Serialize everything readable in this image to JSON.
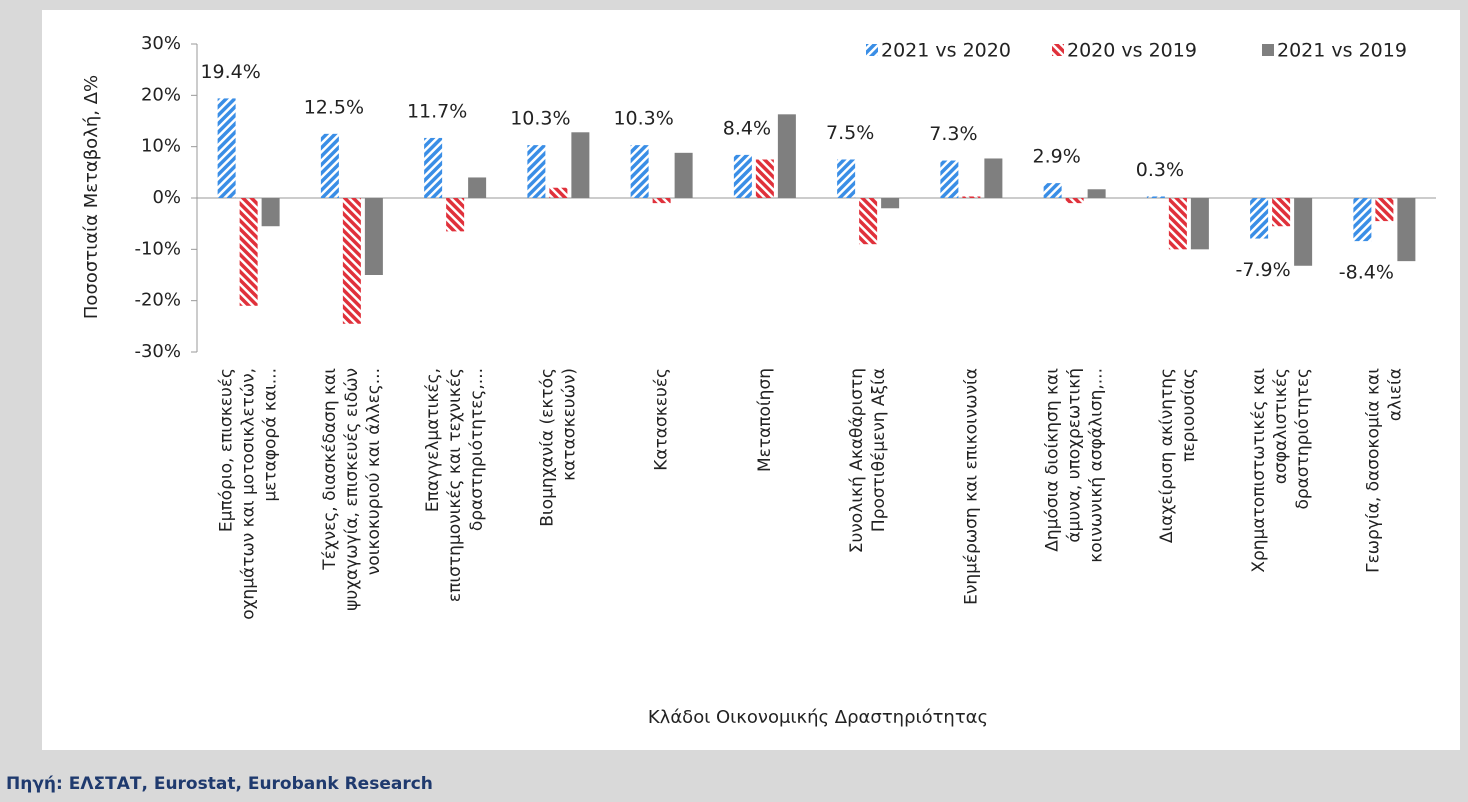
{
  "chart_data": {
    "type": "bar",
    "y_label": "Ποσοστιαία Μεταβολή, Δ%",
    "x_label": "Κλάδοι Οικονομικής Δραστηριότητας",
    "source": "Πηγή: ΕΛΣΤΑΤ, Eurostat, Eurobank Research",
    "categories": [
      "Εμπόριο, επισκευές οχημάτων και μοτοσικλετών, μεταφορά και...",
      "Τέχνες, διασκέδαση και ψυχαγωγία, επισκευές ειδών νοικοκυριού και άλλες...",
      "Επαγγελματικές, επιστημονικές και τεχνικές δραστηριότητες,...",
      "Βιομηχανία (εκτός κατασκευών)",
      "Κατασκευές",
      "Μεταποίηση",
      "Συνολική Ακαθάριστη Προστιθέμενη Αξία",
      "Ενημέρωση και επικοινωνία",
      "Δημόσια διοίκηση και άμυνα, υποχρεωτική κοινωνική ασφάλιση,...",
      "Διαχείριση ακίνητης περιουσίας",
      "Χρηματοπιστωτικές και ασφαλιστικές δραστηριότητες",
      "Γεωργία, δασοκομία και αλιεία"
    ],
    "series": [
      {
        "name": "2021 vs 2020",
        "color": "#3a8ee6",
        "hatched": true,
        "values": [
          19.4,
          12.5,
          11.7,
          10.3,
          10.3,
          8.4,
          7.5,
          7.3,
          2.9,
          0.3,
          -7.9,
          -8.4
        ],
        "value_labels": [
          "19.4%",
          "12.5%",
          "11.7%",
          "10.3%",
          "10.3%",
          "8.4%",
          "7.5%",
          "7.3%",
          "2.9%",
          "0.3%",
          "-7.9%",
          "-8.4%"
        ]
      },
      {
        "name": "2020 vs 2019",
        "color": "#e0313b",
        "hatched": true,
        "values": [
          -21,
          -24.5,
          -6.5,
          2,
          -1,
          7.5,
          -9,
          0.3,
          -1,
          -10,
          -5.5,
          -4.5
        ]
      },
      {
        "name": "2021 vs 2019",
        "color": "#7f7f7f",
        "hatched": false,
        "values": [
          -5.5,
          -15,
          4,
          12.8,
          8.8,
          16.3,
          -2,
          7.7,
          1.7,
          -10,
          -13.2,
          -12.3
        ]
      }
    ],
    "ylim": [
      -30,
      30
    ],
    "yticks": [
      {
        "value": -30,
        "label": "-30%"
      },
      {
        "value": -20,
        "label": "-20%"
      },
      {
        "value": -10,
        "label": "-10%"
      },
      {
        "value": 0,
        "label": "0%"
      },
      {
        "value": 10,
        "label": "10%"
      },
      {
        "value": 20,
        "label": "20%"
      },
      {
        "value": 30,
        "label": "30%"
      }
    ],
    "legend": "top-right"
  }
}
